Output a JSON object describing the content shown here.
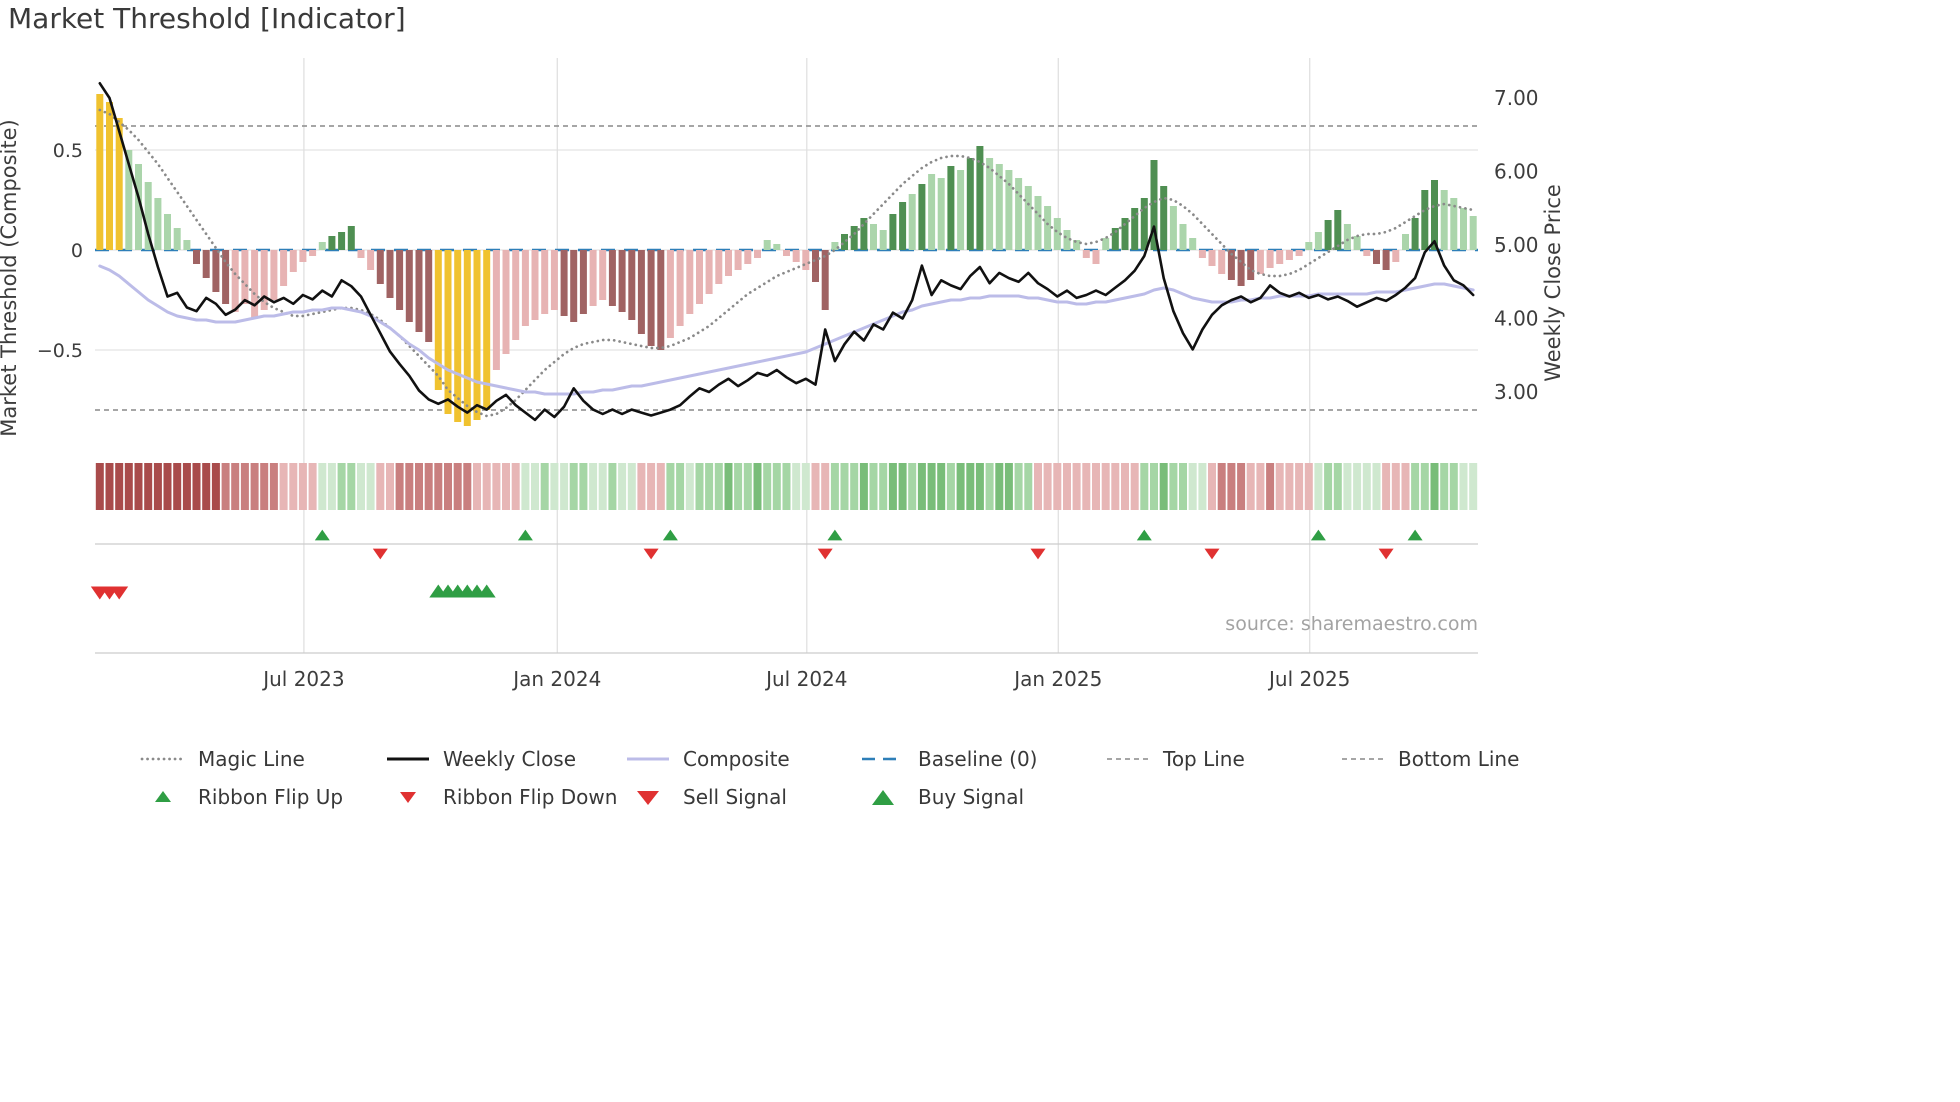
{
  "title": "Market Threshold [Indicator]",
  "source": "source: sharemaestro.com",
  "colors": {
    "gold": "#f0c22f",
    "green_light": "#abd5ab",
    "green_dark": "#4f8f52",
    "pink_light": "#e7b3b3",
    "red_dark": "#a06363",
    "weekly_close": "#111111",
    "composite_line": "#bcbce8",
    "magic_line": "#8a8a8a",
    "baseline": "#2e7fb8",
    "guide_line": "#9a9a9a",
    "buy": "#2f9e44",
    "sell": "#e03131",
    "ribbon": {
      "-3": "#a94b4b",
      "-2": "#c97f7f",
      "-1": "#e7b6b6",
      "1": "#cfe8cf",
      "2": "#a5d6a5",
      "3": "#79bd79"
    }
  },
  "legend": {
    "items": [
      {
        "label": "Magic Line"
      },
      {
        "label": "Weekly Close"
      },
      {
        "label": "Composite"
      },
      {
        "label": "Baseline (0)"
      },
      {
        "label": "Top Line"
      },
      {
        "label": "Bottom Line"
      },
      {
        "label": "Ribbon Flip Up"
      },
      {
        "label": "Ribbon Flip Down"
      },
      {
        "label": "Sell Signal"
      },
      {
        "label": "Buy Signal"
      }
    ]
  },
  "chart_data": {
    "type": "bar+line combo, weekly frequency",
    "n_points": 143,
    "baseline": 0,
    "top_line": 0.62,
    "bottom_line": -0.8,
    "axes": {
      "left_label": "Market Threshold (Composite)",
      "right_label": "Weekly Close Price",
      "ylim_left": [
        -0.99,
        0.96
      ],
      "ylim_right": [
        2.3,
        7.6
      ],
      "left_ticks": [
        {
          "v": 0.5,
          "label": "0.5"
        },
        {
          "v": 0,
          "label": "0"
        },
        {
          "v": -0.5,
          "label": "−0.5"
        }
      ],
      "right_ticks": [
        {
          "v": 7,
          "label": "7.00"
        },
        {
          "v": 6,
          "label": "6.00"
        },
        {
          "v": 5,
          "label": "5.00"
        },
        {
          "v": 4,
          "label": "4.00"
        },
        {
          "v": 3,
          "label": "3.00"
        }
      ],
      "x_ticks": [
        {
          "week": 21.1,
          "label": "Jul 2023"
        },
        {
          "week": 47.3,
          "label": "Jan 2024"
        },
        {
          "week": 73.1,
          "label": "Jul 2024"
        },
        {
          "week": 99.1,
          "label": "Jan 2025"
        },
        {
          "week": 125.1,
          "label": "Jul 2025"
        }
      ]
    },
    "bar_values": [
      0.78,
      0.74,
      0.66,
      0.5,
      0.43,
      0.34,
      0.26,
      0.18,
      0.11,
      0.05,
      -0.07,
      -0.14,
      -0.21,
      -0.27,
      -0.31,
      -0.27,
      -0.34,
      -0.3,
      -0.25,
      -0.18,
      -0.11,
      -0.06,
      -0.03,
      0.04,
      0.07,
      0.09,
      0.12,
      -0.04,
      -0.1,
      -0.17,
      -0.24,
      -0.3,
      -0.36,
      -0.41,
      -0.46,
      -0.7,
      -0.82,
      -0.86,
      -0.88,
      -0.85,
      -0.8,
      -0.6,
      -0.52,
      -0.45,
      -0.38,
      -0.35,
      -0.32,
      -0.3,
      -0.33,
      -0.36,
      -0.32,
      -0.28,
      -0.25,
      -0.28,
      -0.31,
      -0.35,
      -0.42,
      -0.48,
      -0.5,
      -0.44,
      -0.38,
      -0.32,
      -0.27,
      -0.22,
      -0.17,
      -0.13,
      -0.1,
      -0.07,
      -0.04,
      0.05,
      0.03,
      -0.03,
      -0.06,
      -0.1,
      -0.16,
      -0.3,
      0.04,
      0.08,
      0.12,
      0.16,
      0.13,
      0.1,
      0.18,
      0.24,
      0.28,
      0.33,
      0.38,
      0.36,
      0.42,
      0.4,
      0.46,
      0.52,
      0.46,
      0.43,
      0.4,
      0.36,
      0.32,
      0.27,
      0.22,
      0.16,
      0.1,
      0.05,
      -0.04,
      -0.07,
      0.06,
      0.11,
      0.16,
      0.21,
      0.26,
      0.45,
      0.32,
      0.22,
      0.13,
      0.06,
      -0.04,
      -0.08,
      -0.12,
      -0.15,
      -0.18,
      -0.15,
      -0.12,
      -0.09,
      -0.07,
      -0.05,
      -0.03,
      0.04,
      0.09,
      0.15,
      0.2,
      0.13,
      0.07,
      -0.03,
      -0.07,
      -0.1,
      -0.06,
      0.08,
      0.16,
      0.3,
      0.35,
      0.3,
      0.26,
      0.21,
      0.17
    ],
    "bar_colors": [
      "G",
      "G",
      "G",
      "lg",
      "lg",
      "lg",
      "lg",
      "lg",
      "lg",
      "lg",
      "dr",
      "dr",
      "dr",
      "dr",
      "lp",
      "lp",
      "lp",
      "lp",
      "lp",
      "lp",
      "lp",
      "lp",
      "lp",
      "lg",
      "dg",
      "dg",
      "dg",
      "lp",
      "lp",
      "dr",
      "dr",
      "dr",
      "dr",
      "dr",
      "dr",
      "G",
      "G",
      "G",
      "G",
      "G",
      "G",
      "lp",
      "lp",
      "lp",
      "lp",
      "lp",
      "lp",
      "lp",
      "dr",
      "dr",
      "dr",
      "lp",
      "lp",
      "dr",
      "dr",
      "dr",
      "dr",
      "dr",
      "dr",
      "lp",
      "lp",
      "lp",
      "lp",
      "lp",
      "lp",
      "lp",
      "lp",
      "lp",
      "lp",
      "lg",
      "lg",
      "lp",
      "lp",
      "lp",
      "dr",
      "dr",
      "lg",
      "dg",
      "dg",
      "dg",
      "lg",
      "lg",
      "dg",
      "dg",
      "lg",
      "dg",
      "lg",
      "lg",
      "dg",
      "lg",
      "dg",
      "dg",
      "lg",
      "lg",
      "lg",
      "lg",
      "lg",
      "lg",
      "lg",
      "lg",
      "lg",
      "lg",
      "lp",
      "lp",
      "lg",
      "dg",
      "dg",
      "dg",
      "dg",
      "dg",
      "dg",
      "lg",
      "lg",
      "lg",
      "lp",
      "lp",
      "lp",
      "dr",
      "dr",
      "dr",
      "lp",
      "lp",
      "lp",
      "lp",
      "lp",
      "lg",
      "lg",
      "dg",
      "dg",
      "lg",
      "lg",
      "lp",
      "dr",
      "dr",
      "lp",
      "lg",
      "dg",
      "dg",
      "dg",
      "lg",
      "lg",
      "lg",
      "lg"
    ],
    "weekly_close": [
      7.2,
      7.0,
      6.55,
      6.1,
      5.65,
      5.15,
      4.7,
      4.3,
      4.35,
      4.15,
      4.1,
      4.28,
      4.2,
      4.05,
      4.12,
      4.25,
      4.18,
      4.3,
      4.22,
      4.28,
      4.2,
      4.32,
      4.26,
      4.38,
      4.3,
      4.52,
      4.44,
      4.3,
      4.05,
      3.8,
      3.55,
      3.38,
      3.22,
      3.02,
      2.9,
      2.84,
      2.9,
      2.8,
      2.72,
      2.82,
      2.76,
      2.88,
      2.96,
      2.82,
      2.72,
      2.62,
      2.76,
      2.66,
      2.8,
      3.05,
      2.88,
      2.76,
      2.7,
      2.76,
      2.7,
      2.76,
      2.72,
      2.68,
      2.72,
      2.76,
      2.82,
      2.94,
      3.05,
      3.0,
      3.1,
      3.18,
      3.08,
      3.16,
      3.26,
      3.22,
      3.3,
      3.2,
      3.12,
      3.18,
      3.1,
      3.85,
      3.42,
      3.65,
      3.82,
      3.7,
      3.92,
      3.85,
      4.08,
      4.0,
      4.25,
      4.72,
      4.32,
      4.52,
      4.45,
      4.4,
      4.58,
      4.7,
      4.48,
      4.62,
      4.55,
      4.5,
      4.62,
      4.48,
      4.4,
      4.3,
      4.38,
      4.28,
      4.32,
      4.38,
      4.32,
      4.42,
      4.52,
      4.65,
      4.85,
      5.25,
      4.55,
      4.1,
      3.8,
      3.58,
      3.85,
      4.05,
      4.18,
      4.25,
      4.3,
      4.22,
      4.28,
      4.45,
      4.35,
      4.3,
      4.35,
      4.28,
      4.32,
      4.26,
      4.3,
      4.24,
      4.16,
      4.22,
      4.28,
      4.24,
      4.32,
      4.42,
      4.55,
      4.9,
      5.05,
      4.72,
      4.52,
      4.45,
      4.32
    ],
    "composite": [
      -0.08,
      -0.1,
      -0.13,
      -0.17,
      -0.21,
      -0.25,
      -0.28,
      -0.31,
      -0.33,
      -0.34,
      -0.35,
      -0.35,
      -0.36,
      -0.36,
      -0.36,
      -0.35,
      -0.34,
      -0.33,
      -0.33,
      -0.32,
      -0.31,
      -0.31,
      -0.3,
      -0.3,
      -0.29,
      -0.29,
      -0.3,
      -0.31,
      -0.33,
      -0.36,
      -0.39,
      -0.43,
      -0.47,
      -0.5,
      -0.54,
      -0.57,
      -0.6,
      -0.62,
      -0.64,
      -0.66,
      -0.67,
      -0.68,
      -0.69,
      -0.7,
      -0.71,
      -0.71,
      -0.72,
      -0.72,
      -0.72,
      -0.72,
      -0.71,
      -0.71,
      -0.7,
      -0.7,
      -0.69,
      -0.68,
      -0.68,
      -0.67,
      -0.66,
      -0.65,
      -0.64,
      -0.63,
      -0.62,
      -0.61,
      -0.6,
      -0.59,
      -0.58,
      -0.57,
      -0.56,
      -0.55,
      -0.54,
      -0.53,
      -0.52,
      -0.51,
      -0.49,
      -0.47,
      -0.45,
      -0.43,
      -0.41,
      -0.39,
      -0.37,
      -0.35,
      -0.33,
      -0.31,
      -0.3,
      -0.28,
      -0.27,
      -0.26,
      -0.25,
      -0.25,
      -0.24,
      -0.24,
      -0.23,
      -0.23,
      -0.23,
      -0.23,
      -0.24,
      -0.24,
      -0.25,
      -0.26,
      -0.26,
      -0.27,
      -0.27,
      -0.26,
      -0.26,
      -0.25,
      -0.24,
      -0.23,
      -0.22,
      -0.2,
      -0.19,
      -0.2,
      -0.22,
      -0.24,
      -0.25,
      -0.26,
      -0.26,
      -0.26,
      -0.25,
      -0.25,
      -0.24,
      -0.24,
      -0.23,
      -0.23,
      -0.23,
      -0.23,
      -0.22,
      -0.22,
      -0.22,
      -0.22,
      -0.22,
      -0.22,
      -0.21,
      -0.21,
      -0.21,
      -0.2,
      -0.19,
      -0.18,
      -0.17,
      -0.17,
      -0.18,
      -0.19,
      -0.2
    ],
    "magic_line": [
      0.7,
      0.68,
      0.64,
      0.6,
      0.55,
      0.49,
      0.43,
      0.36,
      0.29,
      0.22,
      0.15,
      0.08,
      0.01,
      -0.06,
      -0.12,
      -0.17,
      -0.22,
      -0.26,
      -0.29,
      -0.31,
      -0.33,
      -0.33,
      -0.32,
      -0.31,
      -0.3,
      -0.29,
      -0.29,
      -0.3,
      -0.32,
      -0.35,
      -0.39,
      -0.43,
      -0.48,
      -0.53,
      -0.58,
      -0.63,
      -0.7,
      -0.74,
      -0.78,
      -0.81,
      -0.83,
      -0.82,
      -0.79,
      -0.75,
      -0.7,
      -0.65,
      -0.6,
      -0.56,
      -0.52,
      -0.49,
      -0.47,
      -0.46,
      -0.45,
      -0.45,
      -0.46,
      -0.47,
      -0.48,
      -0.49,
      -0.49,
      -0.48,
      -0.46,
      -0.44,
      -0.41,
      -0.38,
      -0.34,
      -0.3,
      -0.26,
      -0.22,
      -0.19,
      -0.16,
      -0.13,
      -0.11,
      -0.09,
      -0.07,
      -0.05,
      -0.03,
      0,
      0.04,
      0.08,
      0.13,
      0.18,
      0.23,
      0.28,
      0.33,
      0.37,
      0.41,
      0.44,
      0.46,
      0.47,
      0.47,
      0.46,
      0.44,
      0.41,
      0.37,
      0.33,
      0.28,
      0.23,
      0.18,
      0.13,
      0.09,
      0.06,
      0.04,
      0.03,
      0.04,
      0.06,
      0.09,
      0.13,
      0.17,
      0.21,
      0.24,
      0.26,
      0.25,
      0.22,
      0.18,
      0.13,
      0.08,
      0.03,
      -0.02,
      -0.06,
      -0.1,
      -0.12,
      -0.13,
      -0.13,
      -0.12,
      -0.1,
      -0.07,
      -0.04,
      -0.01,
      0.02,
      0.05,
      0.07,
      0.08,
      0.08,
      0.09,
      0.11,
      0.14,
      0.17,
      0.2,
      0.22,
      0.23,
      0.22,
      0.21,
      0.2
    ],
    "ribbon": [
      -3,
      -3,
      -3,
      -3,
      -3,
      -3,
      -3,
      -3,
      -3,
      -3,
      -3,
      -3,
      -3,
      -2,
      -2,
      -2,
      -2,
      -2,
      -2,
      -1,
      -1,
      -1,
      -1,
      1,
      1,
      2,
      2,
      1,
      1,
      -1,
      -1,
      -2,
      -2,
      -2,
      -2,
      -2,
      -2,
      -2,
      -2,
      -1,
      -1,
      -1,
      -1,
      -1,
      1,
      1,
      2,
      1,
      1,
      2,
      2,
      1,
      1,
      2,
      1,
      1,
      -1,
      -1,
      -1,
      2,
      2,
      1,
      2,
      2,
      2,
      3,
      2,
      2,
      3,
      2,
      2,
      2,
      1,
      1,
      -1,
      -1,
      2,
      2,
      2,
      3,
      2,
      2,
      3,
      3,
      2,
      3,
      3,
      3,
      2,
      3,
      3,
      3,
      2,
      3,
      3,
      2,
      2,
      -1,
      -1,
      -1,
      -1,
      -1,
      -1,
      -1,
      -1,
      -1,
      -1,
      -1,
      2,
      2,
      3,
      2,
      2,
      1,
      1,
      -1,
      -2,
      -2,
      -2,
      -1,
      -1,
      -2,
      -1,
      -1,
      -1,
      -1,
      1,
      2,
      2,
      1,
      1,
      1,
      1,
      -1,
      -1,
      -1,
      2,
      2,
      3,
      2,
      2,
      1,
      1
    ],
    "signals": {
      "ribbon_flip_up_weeks": [
        23,
        44,
        59,
        76,
        108,
        126,
        136
      ],
      "ribbon_flip_down_weeks": [
        29,
        57,
        75,
        97,
        115,
        133
      ],
      "sell_signal_weeks": [
        0,
        1,
        2
      ],
      "buy_signal_weeks": [
        35,
        36,
        37,
        38,
        39,
        40
      ]
    }
  }
}
